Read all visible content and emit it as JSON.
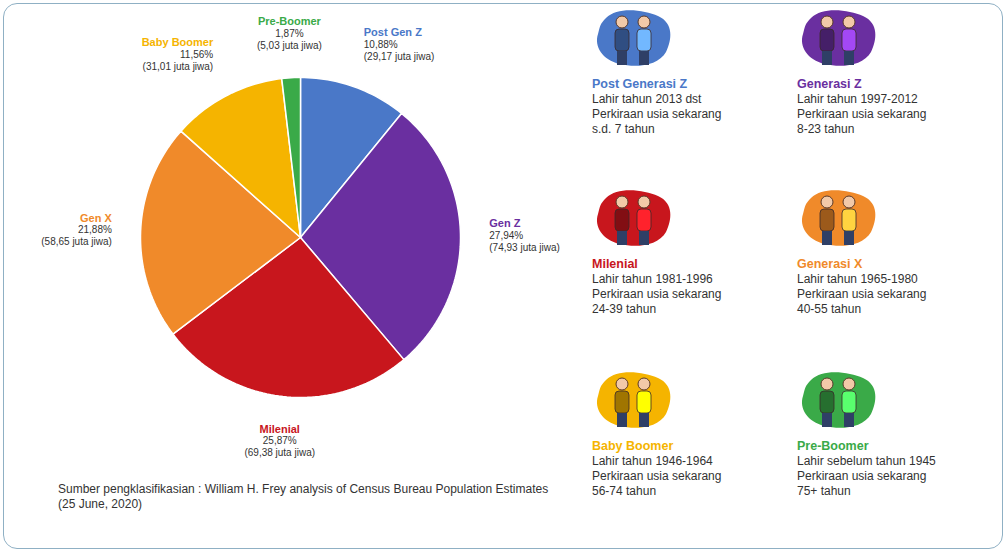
{
  "chart_data": {
    "type": "pie",
    "categories": [
      "Post Gen Z",
      "Gen Z",
      "Milenial",
      "Gen X",
      "Baby Boomer",
      "Pre-Boomer"
    ],
    "values": [
      10.88,
      27.94,
      25.87,
      21.88,
      11.56,
      1.87
    ],
    "value_labels": [
      "10,88%",
      "27,94%",
      "25,87%",
      "21,88%",
      "11,56%",
      "1,87%"
    ],
    "population": [
      29.17,
      74.93,
      69.38,
      58.65,
      31.01,
      5.03
    ],
    "population_labels": [
      "(29,17 juta jiwa)",
      "(74,93 juta jiwa)",
      "(69,38 juta jiwa)",
      "(58,65 juta jiwa)",
      "(31,01 juta jiwa)",
      "(5,03 juta jiwa)"
    ],
    "colors": [
      "#4a78c8",
      "#6a2fa0",
      "#c8161d",
      "#f08a2a",
      "#f5b400",
      "#3aaa48"
    ],
    "data_labels": true,
    "tick_labels": false
  },
  "panels": [
    {
      "name": "Post Generasi Z",
      "color": "#4a78c8",
      "lines": [
        "Lahir tahun 2013 dst",
        "Perkiraan usia sekarang",
        "s.d. 7 tahun"
      ]
    },
    {
      "name": "Generasi Z",
      "color": "#6a2fa0",
      "lines": [
        "Lahir tahun 1997-2012",
        "Perkiraan usia sekarang",
        "8-23 tahun"
      ]
    },
    {
      "name": "Milenial",
      "color": "#c8161d",
      "lines": [
        "Lahir tahun 1981-1996",
        "Perkiraan usia sekarang",
        "24-39 tahun"
      ]
    },
    {
      "name": "Generasi X",
      "color": "#f08a2a",
      "lines": [
        "Lahir tahun 1965-1980",
        "Perkiraan usia sekarang",
        "40-55 tahun"
      ]
    },
    {
      "name": "Baby Boomer",
      "color": "#f5b400",
      "lines": [
        "Lahir tahun 1946-1964",
        "Perkiraan usia sekarang",
        "56-74 tahun"
      ]
    },
    {
      "name": "Pre-Boomer",
      "color": "#3aaa48",
      "lines": [
        "Lahir sebelum tahun 1945",
        "Perkiraan usia sekarang",
        "75+ tahun"
      ]
    }
  ],
  "source": "Sumber pengklasifikasian : William H. Frey analysis of Census Bureau Population Estimates (25 June, 2020)"
}
